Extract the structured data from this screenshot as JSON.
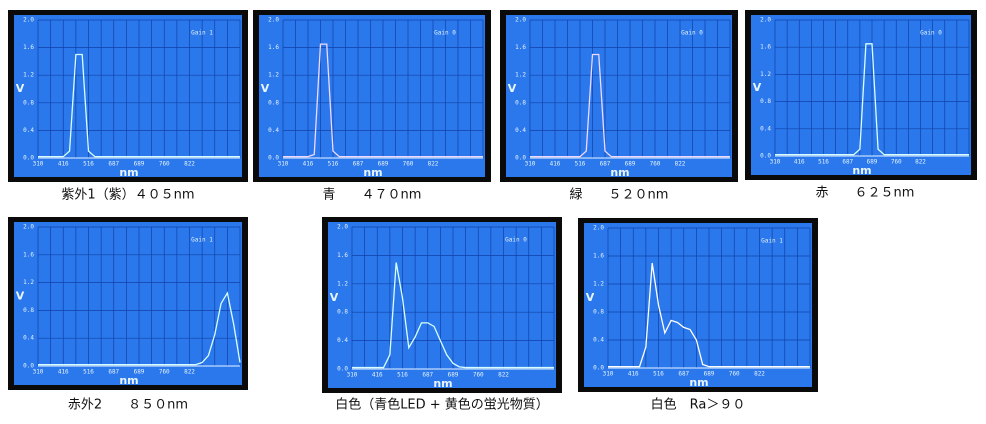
{
  "chart_data": [
    {
      "type": "line",
      "annotation": "Gain 1",
      "caption": "紫外1（紫）４０５nm",
      "x_label": "nm",
      "y_label": "V",
      "color": "#d8ffff",
      "grid": true,
      "categories": [
        "310",
        null,
        null,
        null,
        "416",
        null,
        null,
        null,
        "516",
        null,
        null,
        null,
        "687",
        null,
        null,
        null,
        "689",
        null,
        null,
        null,
        "760",
        null,
        null,
        null,
        "822",
        null,
        null,
        null,
        null,
        null,
        null,
        null,
        null
      ],
      "values": [
        0.02,
        0.02,
        0.02,
        0.02,
        0.02,
        0.1,
        1.5,
        1.5,
        0.1,
        0.02,
        0.02,
        0.02,
        0.02,
        0.02,
        0.02,
        0.02,
        0.02,
        0.02,
        0.02,
        0.02,
        0.02,
        0.02,
        0.02,
        0.02,
        0.02,
        0.02,
        0.02,
        0.02,
        0.02,
        0.02,
        0.02,
        0.02,
        0.02
      ],
      "ylim": [
        0,
        2
      ],
      "yticks": [
        {
          "value": 0,
          "label": "0.0"
        },
        0.4,
        0.8,
        1.2,
        1.6,
        {
          "value": 2,
          "label": "2.0"
        }
      ]
    },
    {
      "type": "line",
      "annotation": "Gain 0",
      "caption": "青　　４７０nm",
      "x_label": "nm",
      "y_label": "V",
      "color": "#f0d8ff",
      "grid": true,
      "categories": [
        "310",
        null,
        null,
        null,
        "416",
        null,
        null,
        null,
        "516",
        null,
        null,
        null,
        "687",
        null,
        null,
        null,
        "689",
        null,
        null,
        null,
        "760",
        null,
        null,
        null,
        "822",
        null,
        null,
        null,
        null,
        null,
        null,
        null,
        null
      ],
      "values": [
        0.02,
        0.02,
        0.02,
        0.02,
        0.02,
        0.05,
        1.65,
        1.65,
        0.1,
        0.02,
        0.02,
        0.02,
        0.02,
        0.02,
        0.02,
        0.02,
        0.02,
        0.02,
        0.02,
        0.02,
        0.02,
        0.02,
        0.02,
        0.02,
        0.02,
        0.02,
        0.02,
        0.02,
        0.02,
        0.02,
        0.02,
        0.02,
        0.02
      ],
      "ylim": [
        0,
        2
      ],
      "yticks": [
        {
          "value": 0,
          "label": "0.0"
        },
        0.4,
        0.8,
        1.2,
        1.6,
        {
          "value": 2,
          "label": "2.0"
        }
      ]
    },
    {
      "type": "line",
      "annotation": "Gain 0",
      "caption": "緑　　５２０nm",
      "x_label": "nm",
      "y_label": "V",
      "color": "#f0d8ff",
      "grid": true,
      "categories": [
        "310",
        null,
        null,
        null,
        "416",
        null,
        null,
        null,
        "516",
        null,
        null,
        null,
        "687",
        null,
        null,
        null,
        "689",
        null,
        null,
        null,
        "760",
        null,
        null,
        null,
        "822",
        null,
        null,
        null,
        null,
        null,
        null,
        null,
        null
      ],
      "values": [
        0.02,
        0.02,
        0.02,
        0.02,
        0.02,
        0.02,
        0.02,
        0.02,
        0.02,
        0.1,
        1.5,
        1.5,
        0.1,
        0.02,
        0.02,
        0.02,
        0.02,
        0.02,
        0.02,
        0.02,
        0.02,
        0.02,
        0.02,
        0.02,
        0.02,
        0.02,
        0.02,
        0.02,
        0.02,
        0.02,
        0.02,
        0.02,
        0.02
      ],
      "ylim": [
        0,
        2
      ],
      "yticks": [
        {
          "value": 0,
          "label": "0.0"
        },
        0.4,
        0.8,
        1.2,
        1.6,
        {
          "value": 2,
          "label": "2.0"
        }
      ]
    },
    {
      "type": "line",
      "annotation": "Gain 0",
      "caption": "赤　　６２５nm",
      "x_label": "nm",
      "y_label": "V",
      "color": "#d8ffff",
      "grid": true,
      "categories": [
        "310",
        null,
        null,
        null,
        "416",
        null,
        null,
        null,
        "516",
        null,
        null,
        null,
        "687",
        null,
        null,
        null,
        "689",
        null,
        null,
        null,
        "760",
        null,
        null,
        null,
        "822",
        null,
        null,
        null,
        null,
        null,
        null,
        null,
        null
      ],
      "values": [
        0.02,
        0.02,
        0.02,
        0.02,
        0.02,
        0.02,
        0.02,
        0.02,
        0.02,
        0.02,
        0.02,
        0.02,
        0.02,
        0.02,
        0.1,
        1.65,
        1.65,
        0.1,
        0.02,
        0.02,
        0.02,
        0.02,
        0.02,
        0.02,
        0.02,
        0.02,
        0.02,
        0.02,
        0.02,
        0.02,
        0.02,
        0.02,
        0.02
      ],
      "ylim": [
        0,
        2
      ],
      "yticks": [
        {
          "value": 0,
          "label": "0.0"
        },
        0.4,
        0.8,
        1.2,
        1.6,
        {
          "value": 2,
          "label": "2.0"
        }
      ]
    },
    {
      "type": "line",
      "annotation": "Gain 1",
      "caption": "赤外2　　８５０nm",
      "x_label": "nm",
      "y_label": "V",
      "color": "#d8ffff",
      "grid": true,
      "categories": [
        "310",
        null,
        null,
        null,
        "416",
        null,
        null,
        null,
        "516",
        null,
        null,
        null,
        "687",
        null,
        null,
        null,
        "689",
        null,
        null,
        null,
        "760",
        null,
        null,
        null,
        "822",
        null,
        null,
        null,
        null,
        null,
        null,
        null,
        null
      ],
      "values": [
        0.02,
        0.02,
        0.02,
        0.02,
        0.02,
        0.02,
        0.02,
        0.02,
        0.02,
        0.02,
        0.02,
        0.02,
        0.02,
        0.02,
        0.02,
        0.02,
        0.02,
        0.02,
        0.02,
        0.02,
        0.02,
        0.02,
        0.02,
        0.02,
        0.02,
        0.02,
        0.05,
        0.15,
        0.45,
        0.9,
        1.05,
        0.6,
        0.05
      ],
      "ylim": [
        0,
        2
      ],
      "yticks": [
        {
          "value": 0,
          "label": "0.0"
        },
        0.4,
        0.8,
        1.2,
        1.6,
        {
          "value": 2,
          "label": "2.0"
        }
      ]
    },
    {
      "type": "line",
      "annotation": "Gain 0",
      "caption": "白色（青色LED + 黄色の蛍光物質）",
      "x_label": "nm",
      "y_label": "V",
      "color": "#d8ffff",
      "grid": true,
      "categories": [
        "310",
        null,
        null,
        null,
        "416",
        null,
        null,
        null,
        "516",
        null,
        null,
        null,
        "687",
        null,
        null,
        null,
        "689",
        null,
        null,
        null,
        "760",
        null,
        null,
        null,
        "822",
        null,
        null,
        null,
        null,
        null,
        null,
        null,
        null
      ],
      "values": [
        0.02,
        0.02,
        0.02,
        0.02,
        0.02,
        0.02,
        0.2,
        1.5,
        1.0,
        0.3,
        0.45,
        0.65,
        0.65,
        0.6,
        0.4,
        0.2,
        0.08,
        0.03,
        0.02,
        0.02,
        0.02,
        0.02,
        0.02,
        0.02,
        0.02,
        0.02,
        0.02,
        0.02,
        0.02,
        0.02,
        0.02,
        0.02,
        0.02
      ],
      "ylim": [
        0,
        2
      ],
      "yticks": [
        {
          "value": 0,
          "label": "0.0"
        },
        0.4,
        0.8,
        1.2,
        1.6,
        {
          "value": 2,
          "label": "2.0"
        }
      ]
    },
    {
      "type": "line",
      "annotation": "Gain 1",
      "caption": "白色　Ra＞９０",
      "x_label": "nm",
      "y_label": "V",
      "color": "#ffffff",
      "grid": true,
      "categories": [
        "310",
        null,
        null,
        null,
        "416",
        null,
        null,
        null,
        "516",
        null,
        null,
        null,
        "687",
        null,
        null,
        null,
        "689",
        null,
        null,
        null,
        "760",
        null,
        null,
        null,
        "822",
        null,
        null,
        null,
        null,
        null,
        null,
        null,
        null
      ],
      "values": [
        0.02,
        0.02,
        0.02,
        0.02,
        0.02,
        0.02,
        0.3,
        1.5,
        0.9,
        0.5,
        0.68,
        0.65,
        0.58,
        0.55,
        0.4,
        0.05,
        0.02,
        0.02,
        0.02,
        0.02,
        0.02,
        0.02,
        0.02,
        0.02,
        0.02,
        0.02,
        0.02,
        0.02,
        0.02,
        0.02,
        0.02,
        0.02,
        0.02
      ],
      "ylim": [
        0,
        2
      ],
      "yticks": [
        {
          "value": 0,
          "label": "0.0"
        },
        0.4,
        0.8,
        1.2,
        1.6,
        {
          "value": 2,
          "label": "2.0"
        }
      ]
    }
  ]
}
